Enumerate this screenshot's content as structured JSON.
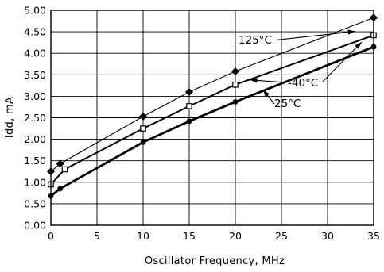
{
  "chart_data": {
    "type": "line",
    "xlabel": "Oscillator Frequency, MHz",
    "ylabel": "Idd, mA",
    "xlim": [
      0,
      35
    ],
    "ylim": [
      0,
      5
    ],
    "xticks": [
      0,
      5,
      10,
      15,
      20,
      25,
      30,
      35
    ],
    "yticks": [
      0,
      0.5,
      1,
      1.5,
      2,
      2.5,
      3,
      3.5,
      4,
      4.5,
      5
    ],
    "xtick_labels": [
      "0",
      "5",
      "10",
      "15",
      "20",
      "25",
      "30",
      "35"
    ],
    "ytick_labels": [
      "0.00",
      "0.50",
      "1.00",
      "1.50",
      "2.00",
      "2.50",
      "3.00",
      "3.50",
      "4.00",
      "4.50",
      "5.00"
    ],
    "grid": true,
    "series": [
      {
        "name": "125°C",
        "marker": "diamond",
        "line_weight": "thin",
        "x": [
          0,
          1,
          10,
          15,
          20,
          35
        ],
        "y": [
          1.25,
          1.43,
          2.53,
          3.1,
          3.58,
          4.83
        ]
      },
      {
        "name": "-40°C",
        "marker": "open-square",
        "line_weight": "medium",
        "x": [
          0,
          1.5,
          10,
          15,
          20,
          35
        ],
        "y": [
          0.95,
          1.3,
          2.25,
          2.77,
          3.27,
          4.42
        ]
      },
      {
        "name": "25°C",
        "marker": "circle",
        "line_weight": "thick",
        "x": [
          0,
          1,
          10,
          15,
          20,
          35
        ],
        "y": [
          0.68,
          0.85,
          1.93,
          2.42,
          2.87,
          4.15
        ]
      }
    ],
    "annotations": [
      {
        "text": "125°C",
        "points_to": "125°C series at 33 MHz"
      },
      {
        "text": "-40°C",
        "points_to": "-40°C series at ~21.5 MHz and ~34 MHz"
      },
      {
        "text": "25°C",
        "points_to": "25°C series at ~23 MHz"
      }
    ]
  }
}
